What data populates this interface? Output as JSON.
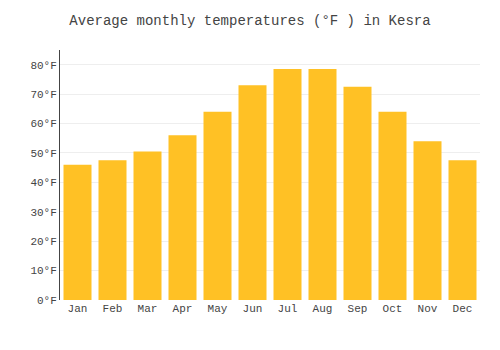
{
  "chart_data": {
    "type": "bar",
    "title": "Average monthly temperatures (°F ) in Kesra",
    "categories": [
      "Jan",
      "Feb",
      "Mar",
      "Apr",
      "May",
      "Jun",
      "Jul",
      "Aug",
      "Sep",
      "Oct",
      "Nov",
      "Dec"
    ],
    "values": [
      46,
      47.5,
      50.5,
      56,
      64,
      73,
      78.5,
      78.5,
      72.5,
      64,
      54,
      47.5
    ],
    "color": "#FFC125",
    "ylim": [
      0,
      85
    ],
    "yticks": [
      {
        "value": 0,
        "label": "0°F"
      },
      {
        "value": 10,
        "label": "10°F"
      },
      {
        "value": 20,
        "label": "20°F"
      },
      {
        "value": 30,
        "label": "30°F"
      },
      {
        "value": 40,
        "label": "40°F"
      },
      {
        "value": 50,
        "label": "50°F"
      },
      {
        "value": 60,
        "label": "60°F"
      },
      {
        "value": 70,
        "label": "70°F"
      },
      {
        "value": 80,
        "label": "80°F"
      }
    ],
    "grid": true
  }
}
